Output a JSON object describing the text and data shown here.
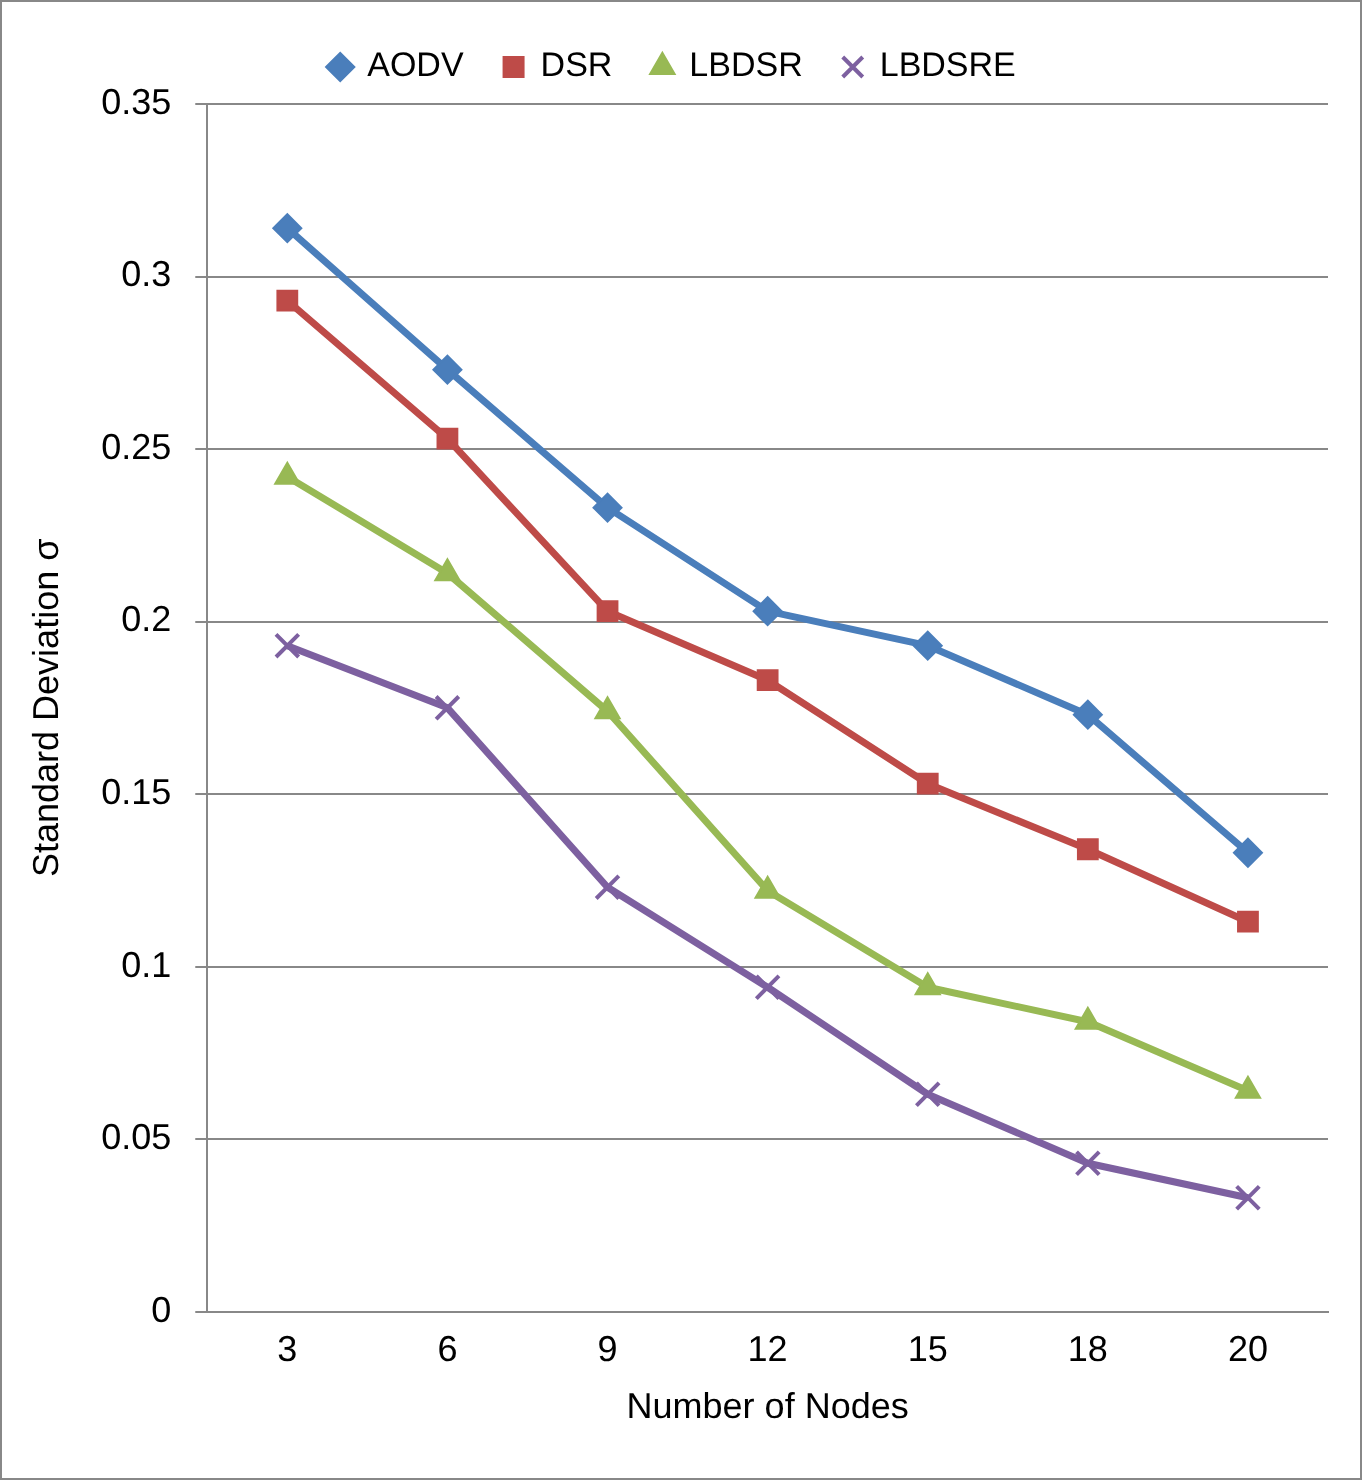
{
  "chart_data": {
    "type": "line",
    "xlabel": "Number of Nodes",
    "ylabel": "Standard Deviation σ",
    "categories": [
      "3",
      "6",
      "9",
      "12",
      "15",
      "18",
      "20"
    ],
    "series": [
      {
        "name": "AODV",
        "color": "#4a7ebb",
        "marker": "diamond",
        "values": [
          0.314,
          0.273,
          0.233,
          0.203,
          0.193,
          0.173,
          0.133
        ]
      },
      {
        "name": "DSR",
        "color": "#be4b48",
        "marker": "square",
        "values": [
          0.293,
          0.253,
          0.203,
          0.183,
          0.153,
          0.134,
          0.113
        ]
      },
      {
        "name": "LBDSR",
        "color": "#98b954",
        "marker": "triangle",
        "values": [
          0.242,
          0.214,
          0.174,
          0.122,
          0.094,
          0.084,
          0.064
        ]
      },
      {
        "name": "LBDSRE",
        "color": "#7d60a0",
        "marker": "cross",
        "values": [
          0.193,
          0.175,
          0.123,
          0.094,
          0.063,
          0.043,
          0.033
        ]
      }
    ],
    "ylim": [
      0,
      0.35
    ],
    "yticks": [
      0,
      0.05,
      0.1,
      0.15,
      0.2,
      0.25,
      0.3,
      0.35
    ],
    "grid": "y",
    "legend": "top"
  }
}
